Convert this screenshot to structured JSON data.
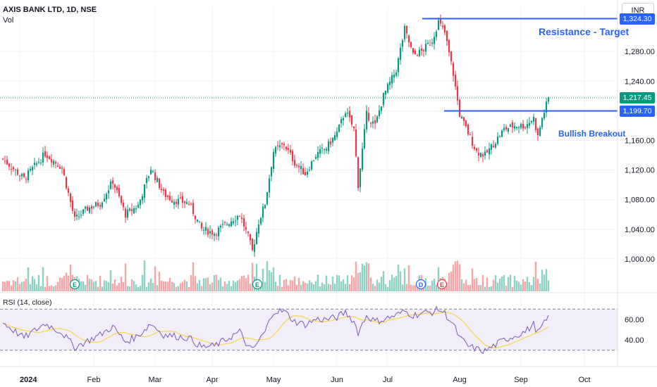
{
  "header": {
    "symbol_title": "AXIS BANK LTD, 1D, NSE",
    "volume_label": "Vol",
    "currency": "INR"
  },
  "rsi": {
    "label": "RSI (14, close)",
    "ticks": [
      "60.00",
      "40.00"
    ]
  },
  "annotations": {
    "resistance_text": "Resistance - Target",
    "resistance_price": "1,324.30",
    "breakout_text": "Bullish Breakout",
    "breakout_price": "1,199.70",
    "last_price": "1,217.45"
  },
  "colors": {
    "up": "#089981",
    "down": "#f23645",
    "vol_up": "#8fd0c4",
    "vol_down": "#f7a5a9",
    "rsi_line": "#7e57c2",
    "rsi_ma": "#f6d44b",
    "accent": "#2962ff"
  },
  "chart_data": {
    "type": "candlestick",
    "price_axis_ticks": [
      "1,280.00",
      "1,240.00",
      "1,200.00",
      "1,160.00",
      "1,120.00",
      "1,080.00",
      "1,040.00",
      "1,000.00"
    ],
    "time_axis_labels": [
      "2024",
      "Feb",
      "Mar",
      "Apr",
      "May",
      "Jun",
      "Jul",
      "Aug",
      "Sep",
      "Oct"
    ],
    "earnings_markers": [
      "E",
      "E",
      "E"
    ],
    "dividend_markers": [
      "D"
    ],
    "price_range": [
      960,
      1340
    ],
    "key_levels": {
      "resistance": 1324.3,
      "breakout": 1199.7,
      "last": 1217.45
    },
    "close_waypoints": [
      [
        0,
        1135
      ],
      [
        10,
        1108
      ],
      [
        20,
        1142
      ],
      [
        28,
        1123
      ],
      [
        34,
        1053
      ],
      [
        40,
        1068
      ],
      [
        46,
        1075
      ],
      [
        52,
        1105
      ],
      [
        58,
        1060
      ],
      [
        64,
        1072
      ],
      [
        70,
        1122
      ],
      [
        76,
        1088
      ],
      [
        80,
        1080
      ],
      [
        88,
        1075
      ],
      [
        94,
        1040
      ],
      [
        100,
        1035
      ],
      [
        106,
        1048
      ],
      [
        112,
        1060
      ],
      [
        116,
        1030
      ],
      [
        118,
        1010
      ],
      [
        121,
        1050
      ],
      [
        124,
        1075
      ],
      [
        128,
        1145
      ],
      [
        133,
        1155
      ],
      [
        138,
        1130
      ],
      [
        143,
        1115
      ],
      [
        148,
        1140
      ],
      [
        153,
        1150
      ],
      [
        158,
        1170
      ],
      [
        162,
        1200
      ],
      [
        166,
        1175
      ],
      [
        168,
        1100
      ],
      [
        172,
        1195
      ],
      [
        176,
        1180
      ],
      [
        180,
        1220
      ],
      [
        186,
        1255
      ],
      [
        190,
        1310
      ],
      [
        194,
        1275
      ],
      [
        198,
        1280
      ],
      [
        203,
        1295
      ],
      [
        206,
        1320
      ],
      [
        209,
        1305
      ],
      [
        213,
        1250
      ],
      [
        216,
        1195
      ],
      [
        220,
        1170
      ],
      [
        224,
        1145
      ],
      [
        228,
        1140
      ],
      [
        232,
        1155
      ],
      [
        237,
        1175
      ],
      [
        242,
        1180
      ],
      [
        247,
        1180
      ],
      [
        251,
        1190
      ],
      [
        253,
        1165
      ],
      [
        255,
        1190
      ],
      [
        258,
        1217
      ]
    ],
    "rsi_waypoints": [
      [
        0,
        57
      ],
      [
        10,
        42
      ],
      [
        20,
        56
      ],
      [
        28,
        47
      ],
      [
        34,
        33
      ],
      [
        46,
        45
      ],
      [
        52,
        53
      ],
      [
        58,
        38
      ],
      [
        64,
        44
      ],
      [
        70,
        56
      ],
      [
        76,
        45
      ],
      [
        80,
        44
      ],
      [
        88,
        42
      ],
      [
        94,
        33
      ],
      [
        100,
        34
      ],
      [
        112,
        48
      ],
      [
        116,
        33
      ],
      [
        118,
        30
      ],
      [
        124,
        48
      ],
      [
        128,
        68
      ],
      [
        133,
        68
      ],
      [
        138,
        58
      ],
      [
        143,
        55
      ],
      [
        148,
        60
      ],
      [
        153,
        60
      ],
      [
        158,
        62
      ],
      [
        162,
        67
      ],
      [
        166,
        58
      ],
      [
        168,
        47
      ],
      [
        172,
        64
      ],
      [
        176,
        58
      ],
      [
        180,
        60
      ],
      [
        186,
        64
      ],
      [
        190,
        68
      ],
      [
        194,
        64
      ],
      [
        198,
        66
      ],
      [
        203,
        67
      ],
      [
        206,
        70
      ],
      [
        209,
        66
      ],
      [
        213,
        55
      ],
      [
        216,
        42
      ],
      [
        220,
        34
      ],
      [
        224,
        31
      ],
      [
        228,
        29
      ],
      [
        232,
        34
      ],
      [
        237,
        40
      ],
      [
        242,
        44
      ],
      [
        247,
        48
      ],
      [
        251,
        55
      ],
      [
        253,
        47
      ],
      [
        255,
        53
      ],
      [
        258,
        62
      ]
    ],
    "rsi_range": [
      25,
      75
    ],
    "rsi_bands": [
      70,
      30
    ]
  }
}
